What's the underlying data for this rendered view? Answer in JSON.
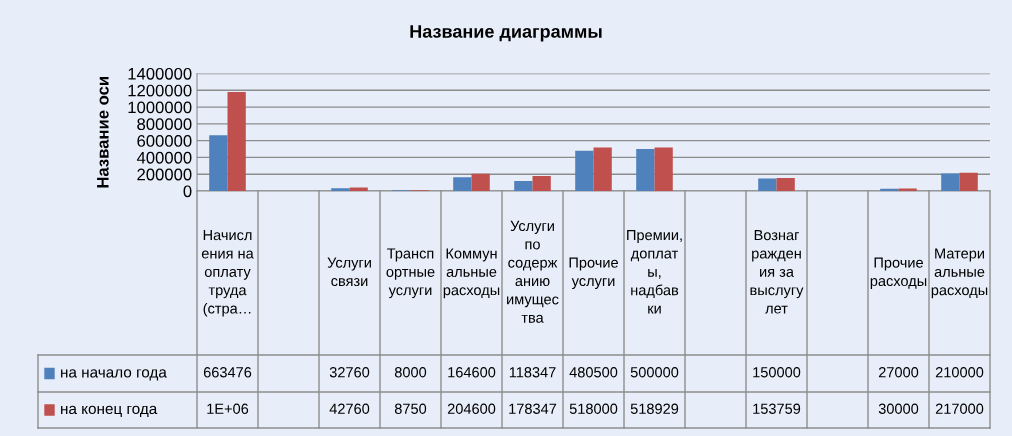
{
  "chart_data": {
    "type": "bar",
    "title": "Название диаграммы",
    "ylabel": "Название оси",
    "categories": [
      "Начисления на оплату труда (стра…",
      null,
      "Услуги связи",
      "Транспортные услуги",
      "Коммунальные расходы",
      "Услуги по содержанию имущества",
      "Прочие услуги",
      "Премии, доплаты, надбавки",
      null,
      "Вознаграждения за выслугу лет",
      null,
      "Прочие расходы",
      "Материальные расходы"
    ],
    "series": [
      {
        "name": "на начало года",
        "color": "#4f81bd",
        "values": [
          663476,
          null,
          32760,
          8000,
          164600,
          118347,
          480500,
          500000,
          null,
          150000,
          null,
          27000,
          210000
        ],
        "value_labels": [
          "663476",
          null,
          "32760",
          "8000",
          "164600",
          "118347",
          "480500",
          "500000",
          null,
          "150000",
          null,
          "27000",
          "210000"
        ]
      },
      {
        "name": "на конец года",
        "color": "#c0504d",
        "values": [
          1180000,
          null,
          42760,
          8750,
          204600,
          178347,
          518000,
          518929,
          null,
          153759,
          null,
          30000,
          217000
        ],
        "value_labels": [
          "1E+06",
          null,
          "42760",
          "8750",
          "204600",
          "178347",
          "518000",
          "518929",
          null,
          "153759",
          null,
          "30000",
          "217000"
        ]
      }
    ],
    "ylim": [
      0,
      1400000
    ],
    "yticks": [
      0,
      200000,
      400000,
      600000,
      800000,
      1000000,
      1200000,
      1400000
    ],
    "grid": "y",
    "legend": "bottom left"
  }
}
